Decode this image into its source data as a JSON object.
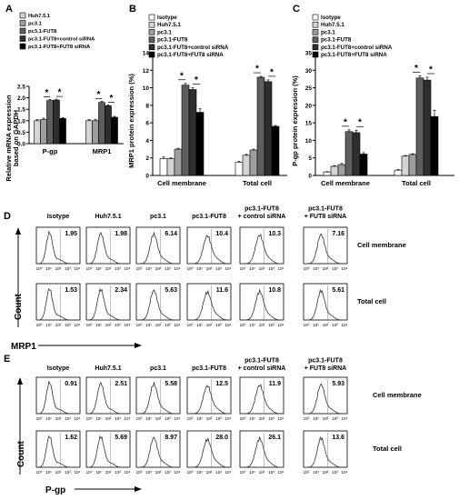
{
  "colors": {
    "c0": "#ffffff",
    "c1": "#d4d4d4",
    "c2": "#9e9e9e",
    "c3": "#5e5e5e",
    "c4": "#2e2e2e",
    "c5": "#000000"
  },
  "panels": {
    "A": {
      "letter": "A",
      "legend": [
        "Huh7.5.1",
        "pc3.1",
        "pc3.1-FUT8",
        "pc3.1-FUT8+control siRNA",
        "pc3.1-FUT8+FUT8 siRNA"
      ],
      "sig": "*",
      "ylabel_line1": "Relative mRNA expression",
      "ylabel_line2": "based on GAPDH"
    },
    "B": {
      "letter": "B",
      "legend": [
        "Isotype",
        "Huh7.5.1",
        "pc3.1",
        "pc3.1-FUT8",
        "pc3.1-FUT8+control siRNA",
        "pc3.1-FUT8+FUT8 siRNA"
      ],
      "sig": "*",
      "ylabel": "MRP1 protein expression (%)"
    },
    "C": {
      "letter": "C",
      "legend": [
        "Isotype",
        "Huh7.5.1",
        "pc3.1",
        "pc3.1-FUT8",
        "pc3.1-FUT8+control siRNA",
        "pc3.1-FUT8+FUT8 siRNA"
      ],
      "sig": "*",
      "ylabel": "P-gp protein expression (%)"
    },
    "D": {
      "letter": "D",
      "columns": [
        "Isotype",
        "Huh7.5.1",
        "pc3.1",
        "pc3.1-FUT8",
        "pc3.1-FUT8\n+ control siRNA",
        "pc3.1-FUT8\n+ FUT8 siRNA"
      ],
      "rows": [
        "Cell membrane",
        "Total cell"
      ],
      "values": [
        [
          "1.95",
          "1.98",
          "6.14",
          "10.4",
          "10.3",
          "7.16"
        ],
        [
          "1.53",
          "2.34",
          "5.63",
          "11.6",
          "10.8",
          "5.61"
        ]
      ],
      "ylabel": "Count",
      "xlabel": "MRP1",
      "ticks": [
        "10⁰",
        "10¹",
        "10²",
        "10³",
        "10⁴"
      ]
    },
    "E": {
      "letter": "E",
      "columns": [
        "Isotype",
        "Huh7.5.1",
        "pc3.1",
        "pc3.1-FUT8",
        "pc3.1-FUT8\n+ control siRNA",
        "pc3.1-FUT8\n+ FUT8 siRNA"
      ],
      "rows": [
        "Cell membrane",
        "Total cell"
      ],
      "values": [
        [
          "0.91",
          "2.51",
          "5.58",
          "12.5",
          "11.9",
          "5.93"
        ],
        [
          "1.62",
          "5.69",
          "8.97",
          "28.0",
          "26.1",
          "13.6"
        ]
      ],
      "ylabel": "Count",
      "xlabel": "P-gp",
      "ticks": [
        "10⁰",
        "10¹",
        "10²",
        "10³",
        "10⁴"
      ]
    }
  },
  "chart_data": [
    {
      "panel": "A",
      "type": "bar",
      "categories": [
        "P-gp",
        "MRP1"
      ],
      "ylim": [
        0,
        2.5
      ],
      "yticks": [
        "0.0",
        "0.5",
        "1.0",
        "1.5",
        "2.0",
        "2.5"
      ],
      "series": [
        {
          "name": "Huh7.5.1",
          "values": [
            1.0,
            1.0
          ],
          "errors": [
            0.05,
            0.05
          ]
        },
        {
          "name": "pc3.1",
          "values": [
            1.05,
            1.0
          ],
          "errors": [
            0.06,
            0.05
          ]
        },
        {
          "name": "pc3.1-FUT8",
          "values": [
            1.88,
            1.8
          ],
          "errors": [
            0.04,
            0.04
          ]
        },
        {
          "name": "pc3.1-FUT8+control siRNA",
          "values": [
            1.9,
            1.65
          ],
          "errors": [
            0.04,
            0.04
          ]
        },
        {
          "name": "pc3.1-FUT8+FUT8 siRNA",
          "values": [
            1.1,
            1.15
          ],
          "errors": [
            0.03,
            0.04
          ]
        }
      ]
    },
    {
      "panel": "B",
      "type": "bar",
      "categories": [
        "Cell membrane",
        "Total cell"
      ],
      "ylim": [
        0,
        14
      ],
      "yticks": [
        "0",
        "2",
        "4",
        "6",
        "8",
        "10",
        "12",
        "14"
      ],
      "series": [
        {
          "name": "Isotype",
          "values": [
            1.9,
            1.5
          ],
          "errors": [
            0.2,
            0.1
          ]
        },
        {
          "name": "Huh7.5.1",
          "values": [
            1.9,
            2.3
          ],
          "errors": [
            0.1,
            0.1
          ]
        },
        {
          "name": "pc3.1",
          "values": [
            3.0,
            2.9
          ],
          "errors": [
            0.1,
            0.1
          ]
        },
        {
          "name": "pc3.1-FUT8",
          "values": [
            10.3,
            11.2
          ],
          "errors": [
            0.2,
            0.1
          ]
        },
        {
          "name": "pc3.1-FUT8+control siRNA",
          "values": [
            9.8,
            10.7
          ],
          "errors": [
            0.2,
            0.2
          ]
        },
        {
          "name": "pc3.1-FUT8+FUT8 siRNA",
          "values": [
            7.2,
            5.6
          ],
          "errors": [
            0.4,
            0.1
          ]
        }
      ]
    },
    {
      "panel": "C",
      "type": "bar",
      "categories": [
        "Cell membrane",
        "Total cell"
      ],
      "ylim": [
        0,
        35
      ],
      "yticks": [
        "0",
        "5",
        "10",
        "15",
        "20",
        "25",
        "30",
        "35"
      ],
      "series": [
        {
          "name": "Isotype",
          "values": [
            1.0,
            1.5
          ],
          "errors": [
            0.1,
            0.2
          ]
        },
        {
          "name": "Huh7.5.1",
          "values": [
            2.6,
            5.5
          ],
          "errors": [
            0.2,
            0.2
          ]
        },
        {
          "name": "pc3.1",
          "values": [
            3.1,
            6.0
          ],
          "errors": [
            0.3,
            0.2
          ]
        },
        {
          "name": "pc3.1-FUT8",
          "values": [
            12.5,
            27.8
          ],
          "errors": [
            0.5,
            0.6
          ]
        },
        {
          "name": "pc3.1-FUT8+control siRNA",
          "values": [
            12.2,
            27.2
          ],
          "errors": [
            0.7,
            0.8
          ]
        },
        {
          "name": "pc3.1-FUT8+FUT8 siRNA",
          "values": [
            6.1,
            16.8
          ],
          "errors": [
            0.4,
            1.8
          ]
        }
      ]
    }
  ]
}
